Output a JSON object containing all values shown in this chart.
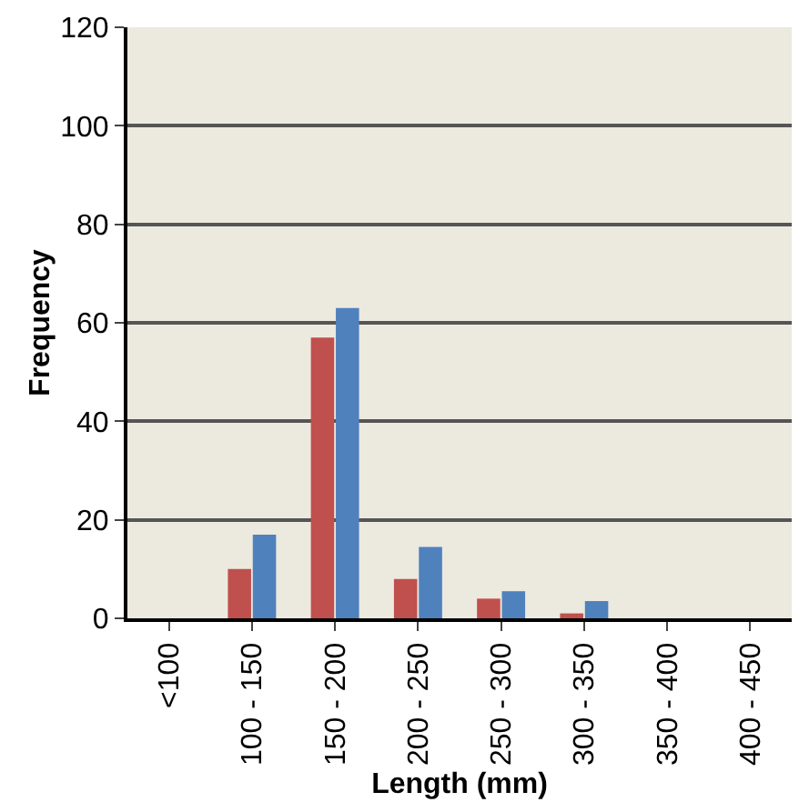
{
  "chart_data": {
    "type": "bar",
    "xlabel": "Length (mm)",
    "ylabel": "Frequency",
    "categories": [
      "<100",
      "100 - 150",
      "150 - 200",
      "200 - 250",
      "250 - 300",
      "300 - 350",
      "350 - 400",
      "400 - 450"
    ],
    "series": [
      {
        "color": "#c0504d",
        "values": [
          0,
          10,
          57,
          8,
          4,
          1,
          0,
          0
        ]
      },
      {
        "color": "#4f81bd",
        "values": [
          0,
          17,
          63,
          14.5,
          5.5,
          3.5,
          0,
          0
        ]
      }
    ],
    "ylim": [
      0,
      120
    ],
    "yticks": [
      0,
      20,
      40,
      60,
      80,
      100,
      120
    ],
    "grid": "y",
    "legend": false
  }
}
